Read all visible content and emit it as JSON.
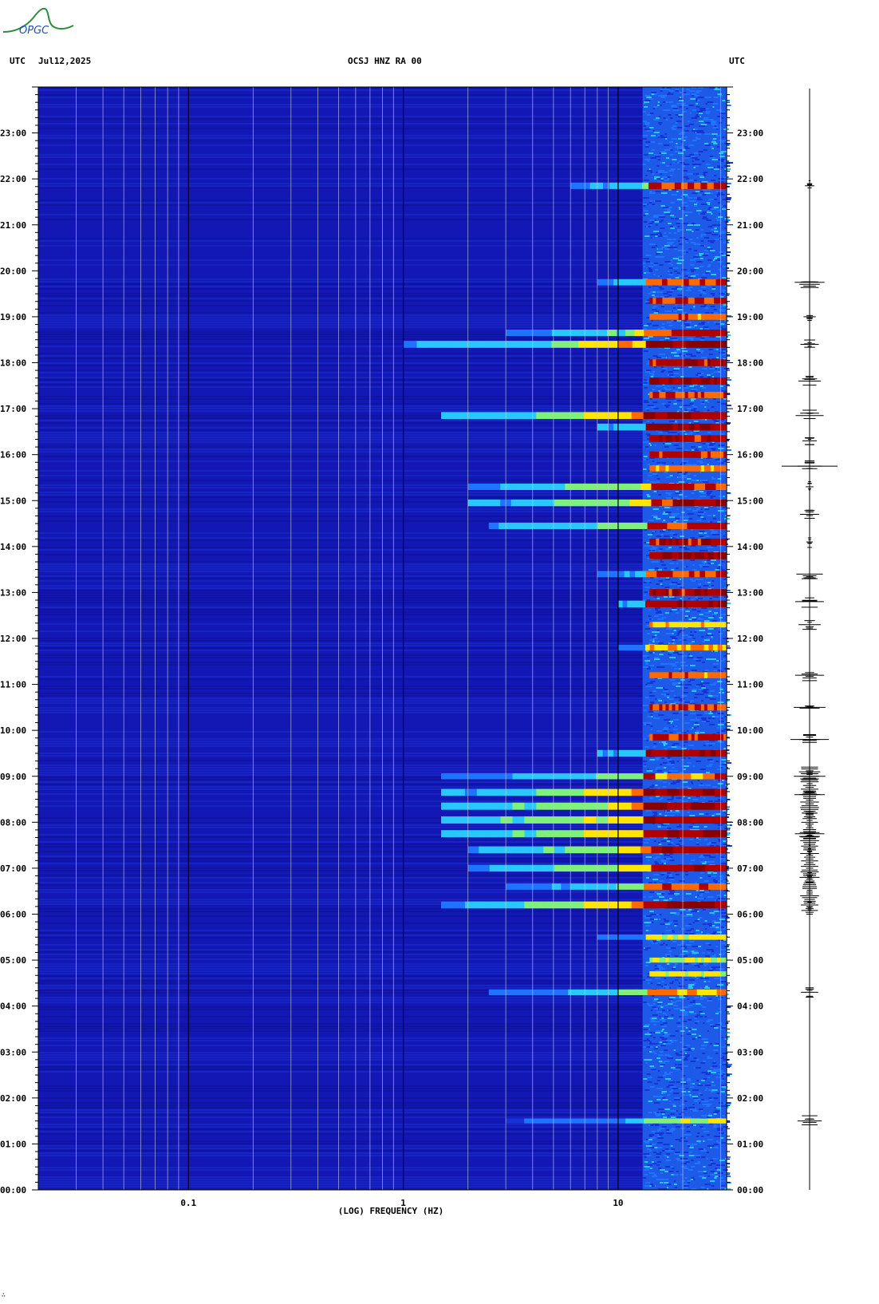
{
  "header": {
    "left_utc": "UTC",
    "date": "Jul12,2025",
    "station": "OCSJ HNZ RA 00",
    "right_utc": "UTC"
  },
  "logo": {
    "text": "OPGC",
    "colors": {
      "swoosh": "#2e8b3a",
      "text": "#1f4fb0"
    }
  },
  "corner_mark": "∴",
  "chart_data": {
    "type": "heatmap",
    "title": "OCSJ HNZ RA 00",
    "xlabel": "(LOG) FREQUENCY (HZ)",
    "ylabel": "",
    "x_scale": "log",
    "x_range_hz": [
      0.02,
      32
    ],
    "x_tick_labels": [
      {
        "value": 0.1,
        "label": "0.1"
      },
      {
        "value": 1,
        "label": "1"
      },
      {
        "value": 10,
        "label": "10"
      }
    ],
    "y_range_hours": [
      0,
      24
    ],
    "y_tick_labels": [
      "00:00",
      "01:00",
      "02:00",
      "03:00",
      "04:00",
      "05:00",
      "06:00",
      "07:00",
      "08:00",
      "09:00",
      "10:00",
      "11:00",
      "12:00",
      "13:00",
      "14:00",
      "15:00",
      "16:00",
      "17:00",
      "18:00",
      "19:00",
      "20:00",
      "21:00",
      "22:00",
      "23:00"
    ],
    "gridline_freqs_hz": [
      0.03,
      0.04,
      0.05,
      0.06,
      0.07,
      0.08,
      0.09,
      0.2,
      0.3,
      0.4,
      0.5,
      0.6,
      0.7,
      0.8,
      0.9,
      2,
      3,
      4,
      5,
      6,
      7,
      8,
      9,
      20,
      30
    ],
    "colormap": [
      "#0a0fa8",
      "#1733d6",
      "#1e73ff",
      "#28c8ff",
      "#7ff07a",
      "#ffe600",
      "#ff6a00",
      "#b00000",
      "#8a0000"
    ],
    "background_level": "#1318b4",
    "high_freq_noise_band_hz": [
      13,
      32
    ],
    "events": [
      {
        "time_h": 1.5,
        "fmin_hz": 3,
        "fmax_hz": 32,
        "intensity": 0.55
      },
      {
        "time_h": 4.3,
        "fmin_hz": 2.5,
        "fmax_hz": 32,
        "intensity": 0.7
      },
      {
        "time_h": 4.7,
        "fmin_hz": 14,
        "fmax_hz": 32,
        "intensity": 0.6
      },
      {
        "time_h": 5.0,
        "fmin_hz": 14,
        "fmax_hz": 32,
        "intensity": 0.55
      },
      {
        "time_h": 5.5,
        "fmin_hz": 8,
        "fmax_hz": 32,
        "intensity": 0.6
      },
      {
        "time_h": 6.2,
        "fmin_hz": 1.5,
        "fmax_hz": 32,
        "intensity": 0.95
      },
      {
        "time_h": 6.6,
        "fmin_hz": 3,
        "fmax_hz": 32,
        "intensity": 0.8
      },
      {
        "time_h": 7.0,
        "fmin_hz": 2,
        "fmax_hz": 32,
        "intensity": 0.9
      },
      {
        "time_h": 7.4,
        "fmin_hz": 2,
        "fmax_hz": 32,
        "intensity": 0.95
      },
      {
        "time_h": 7.75,
        "fmin_hz": 1.5,
        "fmax_hz": 32,
        "intensity": 1.0
      },
      {
        "time_h": 8.05,
        "fmin_hz": 1.5,
        "fmax_hz": 32,
        "intensity": 1.0
      },
      {
        "time_h": 8.35,
        "fmin_hz": 1.5,
        "fmax_hz": 32,
        "intensity": 1.0
      },
      {
        "time_h": 8.65,
        "fmin_hz": 1.5,
        "fmax_hz": 32,
        "intensity": 0.95
      },
      {
        "time_h": 9.0,
        "fmin_hz": 1.5,
        "fmax_hz": 32,
        "intensity": 0.75
      },
      {
        "time_h": 9.5,
        "fmin_hz": 8,
        "fmax_hz": 32,
        "intensity": 0.9
      },
      {
        "time_h": 9.85,
        "fmin_hz": 14,
        "fmax_hz": 32,
        "intensity": 0.85
      },
      {
        "time_h": 10.5,
        "fmin_hz": 14,
        "fmax_hz": 32,
        "intensity": 0.8
      },
      {
        "time_h": 11.2,
        "fmin_hz": 14,
        "fmax_hz": 32,
        "intensity": 0.75
      },
      {
        "time_h": 11.8,
        "fmin_hz": 10,
        "fmax_hz": 32,
        "intensity": 0.7
      },
      {
        "time_h": 12.3,
        "fmin_hz": 14,
        "fmax_hz": 32,
        "intensity": 0.65
      },
      {
        "time_h": 12.75,
        "fmin_hz": 10,
        "fmax_hz": 32,
        "intensity": 0.9
      },
      {
        "time_h": 13.0,
        "fmin_hz": 14,
        "fmax_hz": 32,
        "intensity": 0.9
      },
      {
        "time_h": 13.4,
        "fmin_hz": 8,
        "fmax_hz": 32,
        "intensity": 0.8
      },
      {
        "time_h": 13.8,
        "fmin_hz": 14,
        "fmax_hz": 32,
        "intensity": 0.95
      },
      {
        "time_h": 14.1,
        "fmin_hz": 14,
        "fmax_hz": 32,
        "intensity": 0.9
      },
      {
        "time_h": 14.45,
        "fmin_hz": 2.5,
        "fmax_hz": 32,
        "intensity": 0.85
      },
      {
        "time_h": 14.95,
        "fmin_hz": 2,
        "fmax_hz": 32,
        "intensity": 0.9
      },
      {
        "time_h": 15.3,
        "fmin_hz": 2,
        "fmax_hz": 32,
        "intensity": 0.85
      },
      {
        "time_h": 15.7,
        "fmin_hz": 14,
        "fmax_hz": 32,
        "intensity": 0.75
      },
      {
        "time_h": 16.0,
        "fmin_hz": 14,
        "fmax_hz": 32,
        "intensity": 0.85
      },
      {
        "time_h": 16.35,
        "fmin_hz": 14,
        "fmax_hz": 32,
        "intensity": 0.9
      },
      {
        "time_h": 16.6,
        "fmin_hz": 8,
        "fmax_hz": 32,
        "intensity": 0.95
      },
      {
        "time_h": 16.85,
        "fmin_hz": 1.5,
        "fmax_hz": 32,
        "intensity": 0.95
      },
      {
        "time_h": 17.3,
        "fmin_hz": 14,
        "fmax_hz": 32,
        "intensity": 0.8
      },
      {
        "time_h": 17.6,
        "fmin_hz": 14,
        "fmax_hz": 32,
        "intensity": 0.95
      },
      {
        "time_h": 18.0,
        "fmin_hz": 14,
        "fmax_hz": 32,
        "intensity": 0.9
      },
      {
        "time_h": 18.4,
        "fmin_hz": 1.0,
        "fmax_hz": 32,
        "intensity": 0.95
      },
      {
        "time_h": 18.65,
        "fmin_hz": 3,
        "fmax_hz": 32,
        "intensity": 0.85
      },
      {
        "time_h": 19.0,
        "fmin_hz": 14,
        "fmax_hz": 32,
        "intensity": 0.75
      },
      {
        "time_h": 19.35,
        "fmin_hz": 14,
        "fmax_hz": 32,
        "intensity": 0.8
      },
      {
        "time_h": 19.75,
        "fmin_hz": 8,
        "fmax_hz": 32,
        "intensity": 0.8
      },
      {
        "time_h": 21.85,
        "fmin_hz": 6,
        "fmax_hz": 32,
        "intensity": 0.85
      }
    ],
    "seismogram_trace_events_h": [
      1.5,
      4.3,
      6.2,
      6.8,
      7.4,
      7.75,
      8.2,
      8.6,
      9.0,
      9.8,
      10.5,
      11.2,
      12.3,
      12.8,
      13.4,
      14.1,
      14.7,
      15.3,
      15.75,
      16.3,
      16.85,
      17.6,
      18.4,
      19.0,
      19.75,
      21.85
    ]
  }
}
